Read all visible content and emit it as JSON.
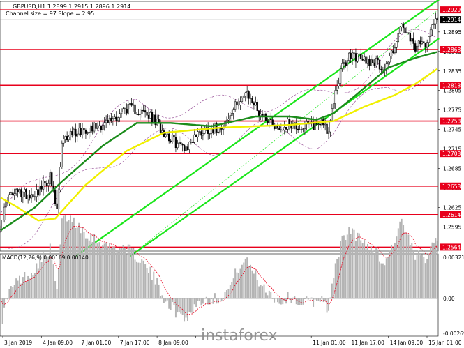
{
  "header": {
    "title": "GBPUSD,H1  1.2899 1.2915 1.2896 1.2914",
    "subtitle": "Channel size = 97 Slope = 2.95"
  },
  "watermark": "instaforex",
  "colors": {
    "background": "#ffffff",
    "candle": "#000000",
    "level_line": "#e8001c",
    "level_label_bg": "#e8001c",
    "current_price_bg": "#000000",
    "ma_fast": "#1a8c1a",
    "ma_slow": "#f0f000",
    "channel": "#19e619",
    "envelope": "#8c3c8c",
    "macd_hist": "#b4b4b4",
    "macd_signal": "#e8001c"
  },
  "chart_data": [
    {
      "type": "candlestick",
      "symbol": "GBPUSD",
      "timeframe": "H1",
      "ohlc_last": {
        "open": 1.2899,
        "high": 1.2915,
        "low": 1.2896,
        "close": 1.2914
      },
      "y_ticks": [
        1.2595,
        1.2625,
        1.2655,
        1.2685,
        1.2715,
        1.2745,
        1.2775,
        1.2805,
        1.2835,
        1.2865,
        1.2895
      ],
      "ylim": [
        1.2558,
        1.2942
      ],
      "x_ticks": [
        "3 Jan 2019",
        "4 Jan 09:00",
        "7 Jan 01:00",
        "7 Jan 17:00",
        "8 Jan 09:00",
        "",
        "",
        "",
        "11 Jan 01:00",
        "11 Jan 17:00",
        "14 Jan 09:00",
        "15 Jan 01:00"
      ],
      "levels": [
        {
          "value": 1.2929,
          "label": "1.2929"
        },
        {
          "value": 1.2868,
          "label": "1.2868"
        },
        {
          "value": 1.2813,
          "label": "1.2813"
        },
        {
          "value": 1.2758,
          "label": "1.2758"
        },
        {
          "value": 1.2708,
          "label": "1.2708"
        },
        {
          "value": 1.2658,
          "label": "1.2658"
        },
        {
          "value": 1.2614,
          "label": "1.2614"
        },
        {
          "value": 1.2564,
          "label": "1.2564"
        }
      ],
      "current_price": {
        "value": 1.2914,
        "label": "1.2914"
      },
      "close_anchors": [
        [
          0,
          1.26
        ],
        [
          4,
          1.264
        ],
        [
          10,
          1.2648
        ],
        [
          18,
          1.2645
        ],
        [
          24,
          1.2655
        ],
        [
          29,
          1.2672
        ],
        [
          33,
          1.2618
        ],
        [
          36,
          1.272
        ],
        [
          40,
          1.2738
        ],
        [
          48,
          1.2745
        ],
        [
          56,
          1.275
        ],
        [
          62,
          1.2755
        ],
        [
          68,
          1.2765
        ],
        [
          74,
          1.2778
        ],
        [
          80,
          1.2775
        ],
        [
          84,
          1.277
        ],
        [
          90,
          1.276
        ],
        [
          96,
          1.2742
        ],
        [
          104,
          1.2722
        ],
        [
          110,
          1.2718
        ],
        [
          114,
          1.2735
        ],
        [
          120,
          1.2745
        ],
        [
          128,
          1.2748
        ],
        [
          134,
          1.276
        ],
        [
          140,
          1.279
        ],
        [
          144,
          1.2798
        ],
        [
          148,
          1.279
        ],
        [
          152,
          1.2772
        ],
        [
          158,
          1.276
        ],
        [
          164,
          1.2745
        ],
        [
          170,
          1.2755
        ],
        [
          176,
          1.2748
        ],
        [
          180,
          1.275
        ],
        [
          186,
          1.2752
        ],
        [
          190,
          1.276
        ],
        [
          193,
          1.2735
        ],
        [
          196,
          1.279
        ],
        [
          200,
          1.2835
        ],
        [
          206,
          1.286
        ],
        [
          214,
          1.2852
        ],
        [
          220,
          1.285
        ],
        [
          226,
          1.2838
        ],
        [
          232,
          1.2875
        ],
        [
          236,
          1.2905
        ],
        [
          240,
          1.2885
        ],
        [
          244,
          1.287
        ],
        [
          250,
          1.288
        ],
        [
          255,
          1.2914
        ]
      ],
      "ma_fast_anchors": [
        [
          0,
          1.259
        ],
        [
          20,
          1.2625
        ],
        [
          36,
          1.2665
        ],
        [
          60,
          1.272
        ],
        [
          80,
          1.2755
        ],
        [
          100,
          1.2755
        ],
        [
          124,
          1.275
        ],
        [
          150,
          1.2765
        ],
        [
          170,
          1.2765
        ],
        [
          186,
          1.276
        ],
        [
          196,
          1.277
        ],
        [
          210,
          1.28
        ],
        [
          228,
          1.284
        ],
        [
          244,
          1.2855
        ],
        [
          258,
          1.2865
        ]
      ],
      "ma_slow_anchors": [
        [
          0,
          1.264
        ],
        [
          10,
          1.2625
        ],
        [
          22,
          1.2605
        ],
        [
          32,
          1.2608
        ],
        [
          50,
          1.266
        ],
        [
          74,
          1.2712
        ],
        [
          96,
          1.274
        ],
        [
          130,
          1.2748
        ],
        [
          170,
          1.2752
        ],
        [
          196,
          1.2758
        ],
        [
          214,
          1.278
        ],
        [
          232,
          1.2798
        ],
        [
          244,
          1.2815
        ],
        [
          258,
          1.284
        ]
      ],
      "channel_lines": [
        {
          "from": [
            44,
            1.255
          ],
          "to": [
            258,
            1.2945
          ]
        },
        {
          "from": [
            76,
            1.255
          ],
          "to": [
            258,
            1.2885
          ]
        },
        {
          "from": [
            76,
            1.255
          ],
          "to": [
            258,
            1.293
          ],
          "dashed": true
        }
      ]
    },
    {
      "type": "bar",
      "name": "MACD",
      "label": "MACD(12,26,9) 0.00169 0.00140",
      "y_ticks": [
        "0.00321",
        "0.00",
        "-0.00269"
      ],
      "ylim": [
        -0.00269,
        0.00321
      ]
    }
  ]
}
